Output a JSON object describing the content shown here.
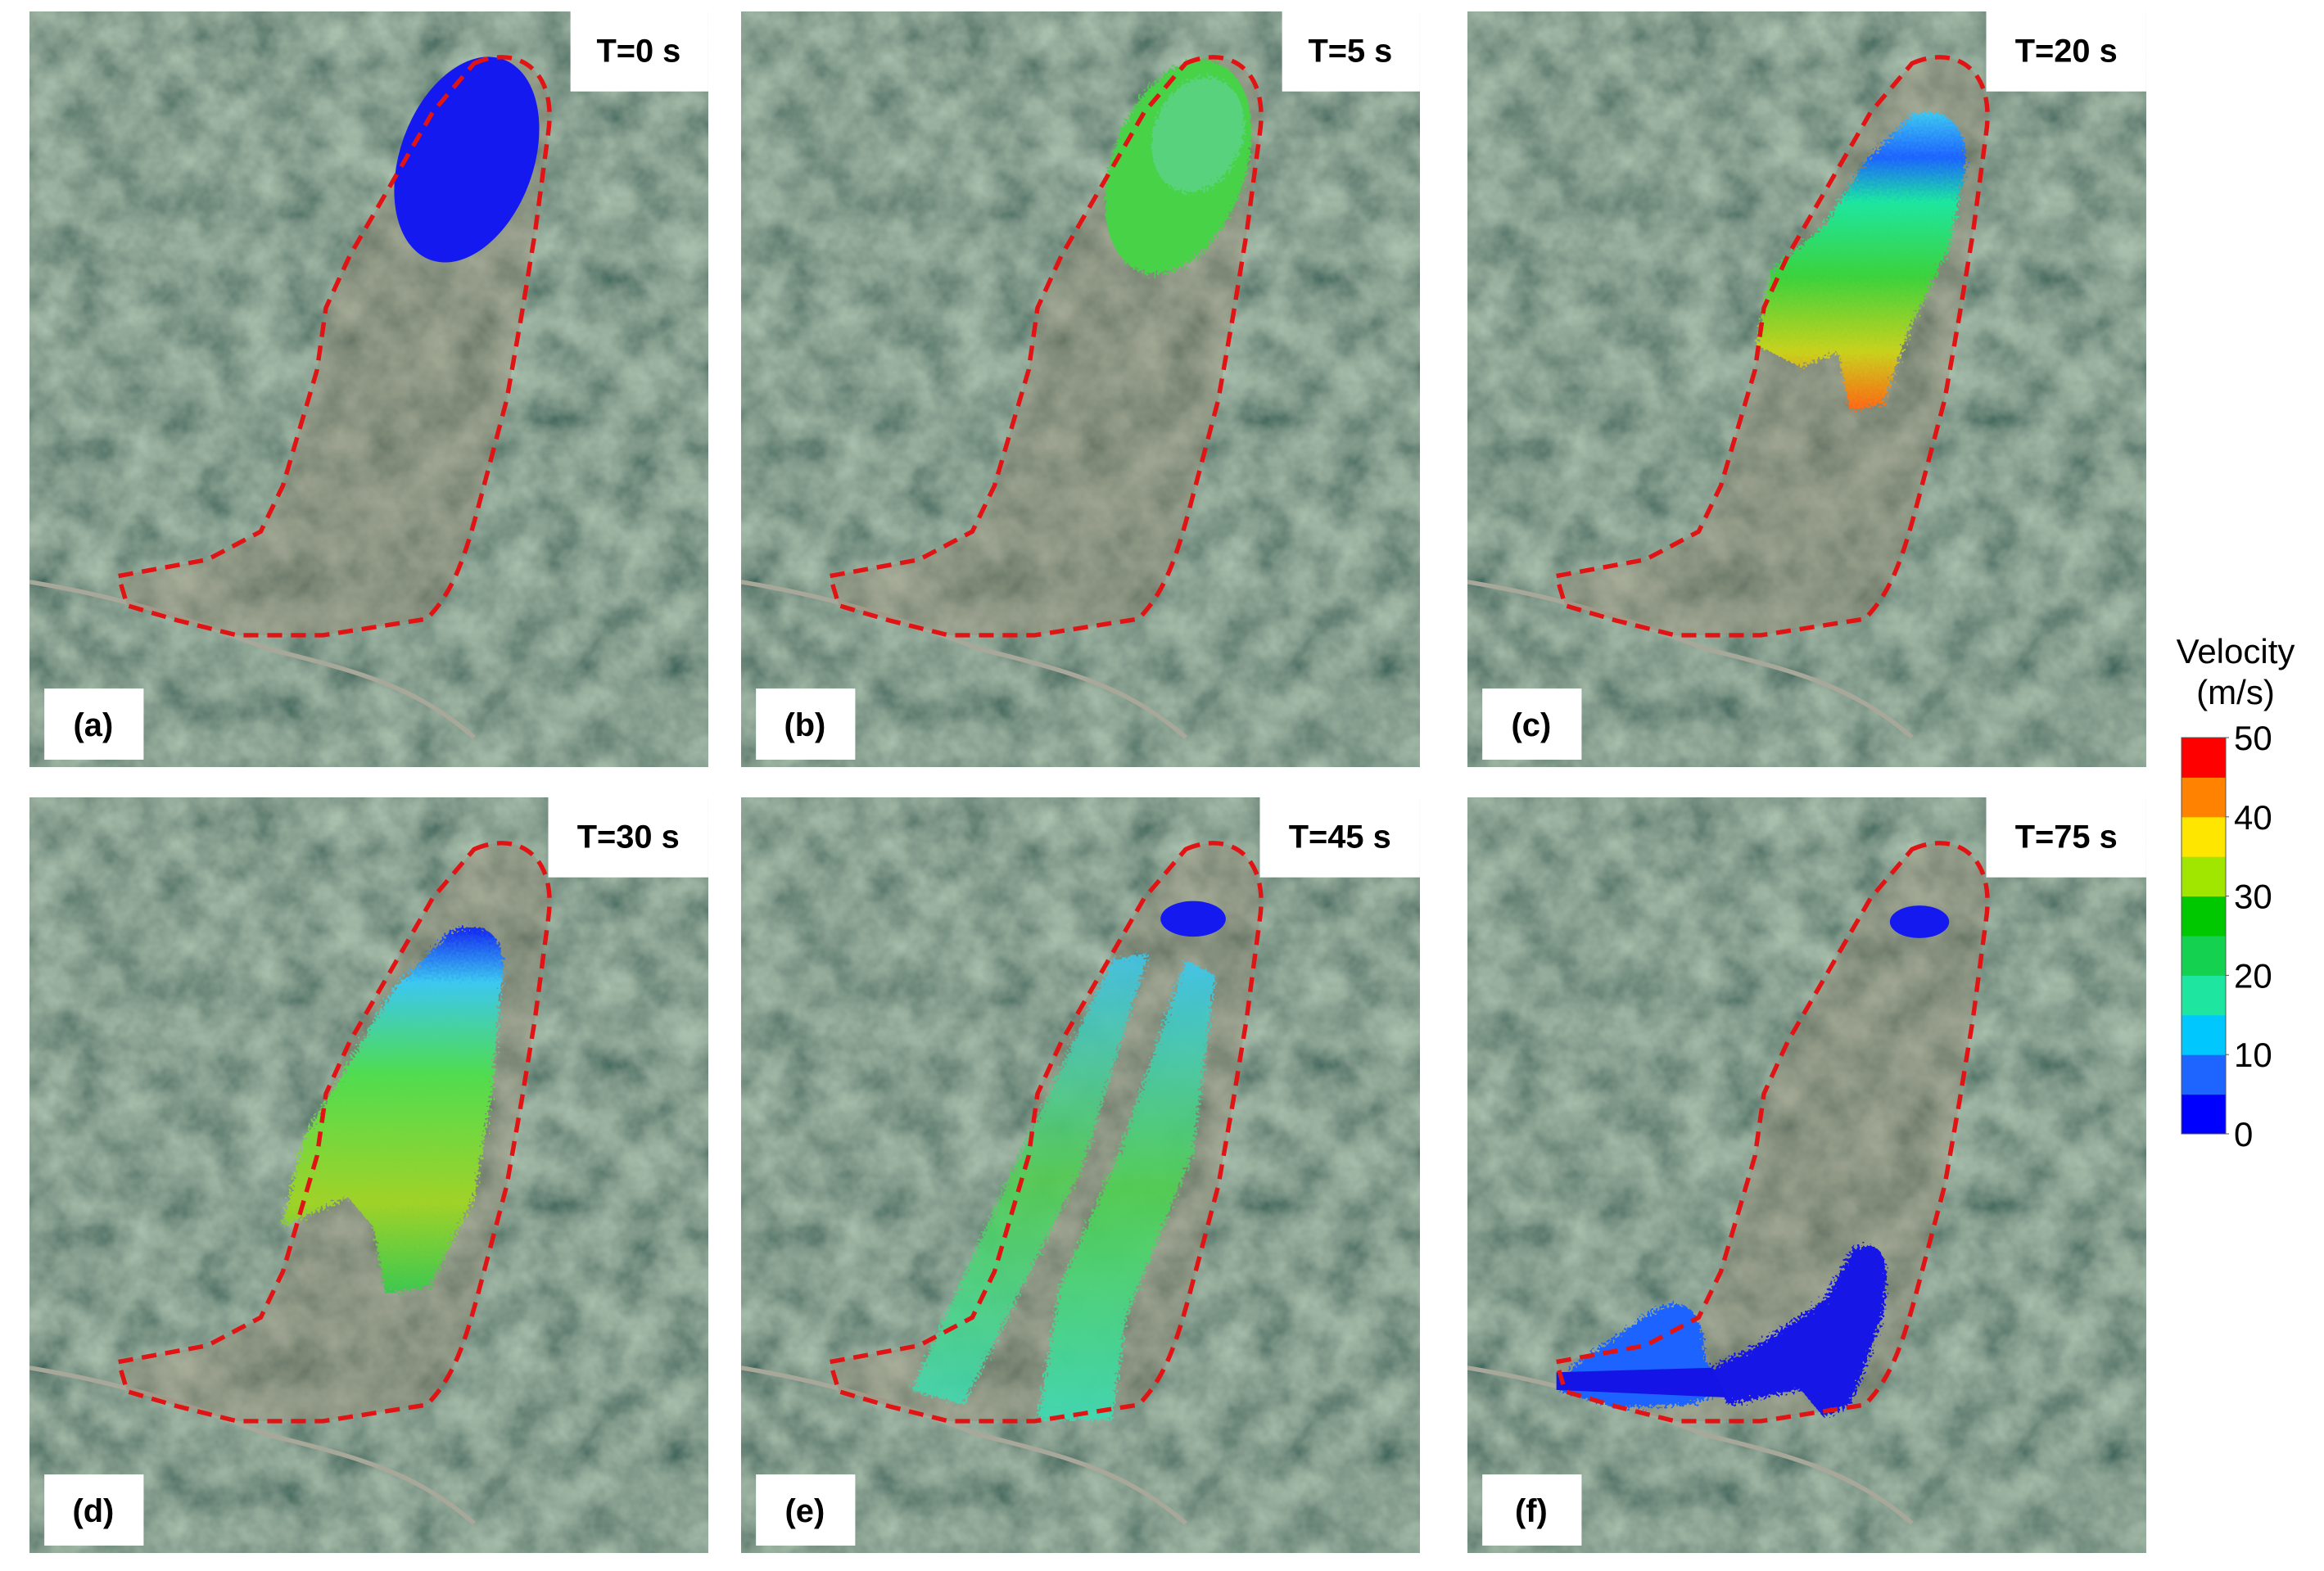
{
  "panels": [
    {
      "time": "T=0 s",
      "label": "(a)"
    },
    {
      "time": "T=5 s",
      "label": "(b)"
    },
    {
      "time": "T=20 s",
      "label": "(c)"
    },
    {
      "time": "T=30 s",
      "label": "(d)"
    },
    {
      "time": "T=45 s",
      "label": "(e)"
    },
    {
      "time": "T=75 s",
      "label": "(f)"
    }
  ],
  "colorbar": {
    "title": [
      "Velocity",
      "(m/s)"
    ],
    "lim": [
      0,
      50
    ],
    "ticks": [
      0,
      10,
      20,
      30,
      40,
      50
    ],
    "colors": [
      "#0000ff",
      "#1e64ff",
      "#00c8ff",
      "#1ee6a0",
      "#14d250",
      "#00c800",
      "#a0e600",
      "#ffe600",
      "#ff8200",
      "#ff0000"
    ]
  }
}
